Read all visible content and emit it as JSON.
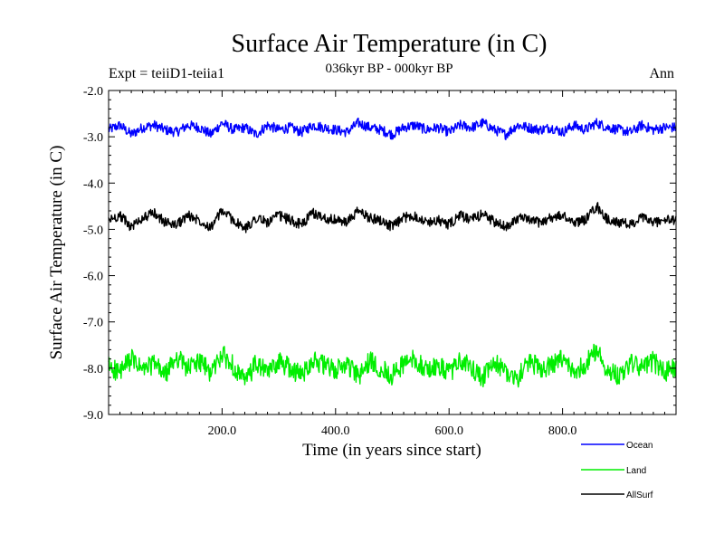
{
  "chart_data": {
    "type": "line",
    "title": "Surface Air Temperature (in C)",
    "subtitle": "036kyr BP - 000kyr BP",
    "left_label": "Expt = teiiD1-teiia1",
    "right_label": "Ann",
    "xlabel": "Time (in years since start)",
    "ylabel": "Surface Air Temperature (in C)",
    "xlim": [
      0,
      1000
    ],
    "ylim": [
      -9.0,
      -2.0
    ],
    "x_ticks": [
      {
        "value": 200,
        "label": "200.0"
      },
      {
        "value": 400,
        "label": "400.0"
      },
      {
        "value": 600,
        "label": "600.0"
      },
      {
        "value": 800,
        "label": "800.0"
      }
    ],
    "y_ticks": [
      {
        "value": -2,
        "label": "-2.0"
      },
      {
        "value": -3,
        "label": "-3.0"
      },
      {
        "value": -4,
        "label": "-4.0"
      },
      {
        "value": -5,
        "label": "-5.0"
      },
      {
        "value": -6,
        "label": "-6.0"
      },
      {
        "value": -7,
        "label": "-7.0"
      },
      {
        "value": -8,
        "label": "-8.0"
      },
      {
        "value": -9,
        "label": "-9.0"
      }
    ],
    "grid": false,
    "legend_position": "bottom-right, below plot",
    "series": [
      {
        "name": "Ocean",
        "color": "#0000ff",
        "x": [
          0,
          20,
          40,
          60,
          80,
          100,
          120,
          140,
          160,
          180,
          200,
          220,
          240,
          260,
          280,
          300,
          320,
          340,
          360,
          380,
          400,
          420,
          440,
          460,
          480,
          500,
          520,
          540,
          560,
          580,
          600,
          620,
          640,
          660,
          680,
          700,
          720,
          740,
          760,
          780,
          800,
          820,
          840,
          860,
          880,
          900,
          920,
          940,
          960,
          980,
          1000
        ],
        "values": [
          -2.85,
          -2.75,
          -2.95,
          -2.8,
          -2.75,
          -2.85,
          -2.9,
          -2.75,
          -2.8,
          -2.95,
          -2.7,
          -2.85,
          -2.8,
          -2.95,
          -2.75,
          -2.85,
          -2.8,
          -2.9,
          -2.75,
          -2.8,
          -2.85,
          -2.9,
          -2.7,
          -2.8,
          -2.85,
          -2.95,
          -2.8,
          -2.75,
          -2.85,
          -2.8,
          -2.9,
          -2.75,
          -2.8,
          -2.7,
          -2.85,
          -2.95,
          -2.75,
          -2.8,
          -2.85,
          -2.8,
          -2.9,
          -2.75,
          -2.85,
          -2.7,
          -2.8,
          -2.85,
          -2.9,
          -2.75,
          -2.85,
          -2.8,
          -2.8
        ]
      },
      {
        "name": "Land",
        "color": "#00ee00",
        "x": [
          0,
          20,
          40,
          60,
          80,
          100,
          120,
          140,
          160,
          180,
          200,
          220,
          240,
          260,
          280,
          300,
          320,
          340,
          360,
          380,
          400,
          420,
          440,
          460,
          480,
          500,
          520,
          540,
          560,
          580,
          600,
          620,
          640,
          660,
          680,
          700,
          720,
          740,
          760,
          780,
          800,
          820,
          840,
          860,
          880,
          900,
          920,
          940,
          960,
          980,
          1000
        ],
        "values": [
          -7.95,
          -8.1,
          -7.8,
          -8.05,
          -7.9,
          -8.15,
          -7.75,
          -8.0,
          -7.85,
          -8.1,
          -7.7,
          -7.95,
          -8.3,
          -7.9,
          -8.1,
          -7.85,
          -8.0,
          -8.15,
          -7.8,
          -7.95,
          -8.05,
          -7.9,
          -8.2,
          -7.85,
          -8.0,
          -8.15,
          -7.9,
          -7.8,
          -8.05,
          -7.95,
          -8.1,
          -7.85,
          -8.0,
          -8.2,
          -7.9,
          -8.05,
          -8.25,
          -7.85,
          -8.0,
          -7.95,
          -7.8,
          -8.1,
          -7.9,
          -7.6,
          -8.05,
          -8.15,
          -7.9,
          -8.0,
          -7.85,
          -8.1,
          -7.95
        ]
      },
      {
        "name": "AllSurf",
        "color": "#000000",
        "x": [
          0,
          20,
          40,
          60,
          80,
          100,
          120,
          140,
          160,
          180,
          200,
          220,
          240,
          260,
          280,
          300,
          320,
          340,
          360,
          380,
          400,
          420,
          440,
          460,
          480,
          500,
          520,
          540,
          560,
          580,
          600,
          620,
          640,
          660,
          680,
          700,
          720,
          740,
          760,
          780,
          800,
          820,
          840,
          860,
          880,
          900,
          920,
          940,
          960,
          980,
          1000
        ],
        "values": [
          -4.8,
          -4.7,
          -4.95,
          -4.75,
          -4.65,
          -4.85,
          -4.9,
          -4.7,
          -4.8,
          -4.95,
          -4.6,
          -4.8,
          -5.0,
          -4.75,
          -4.85,
          -4.7,
          -4.8,
          -4.9,
          -4.65,
          -4.75,
          -4.8,
          -4.85,
          -4.6,
          -4.75,
          -4.8,
          -4.95,
          -4.75,
          -4.7,
          -4.85,
          -4.8,
          -4.9,
          -4.7,
          -4.8,
          -4.65,
          -4.85,
          -4.95,
          -4.75,
          -4.8,
          -4.85,
          -4.75,
          -4.7,
          -4.85,
          -4.8,
          -4.5,
          -4.8,
          -4.85,
          -4.9,
          -4.75,
          -4.85,
          -4.8,
          -4.8
        ]
      }
    ]
  }
}
